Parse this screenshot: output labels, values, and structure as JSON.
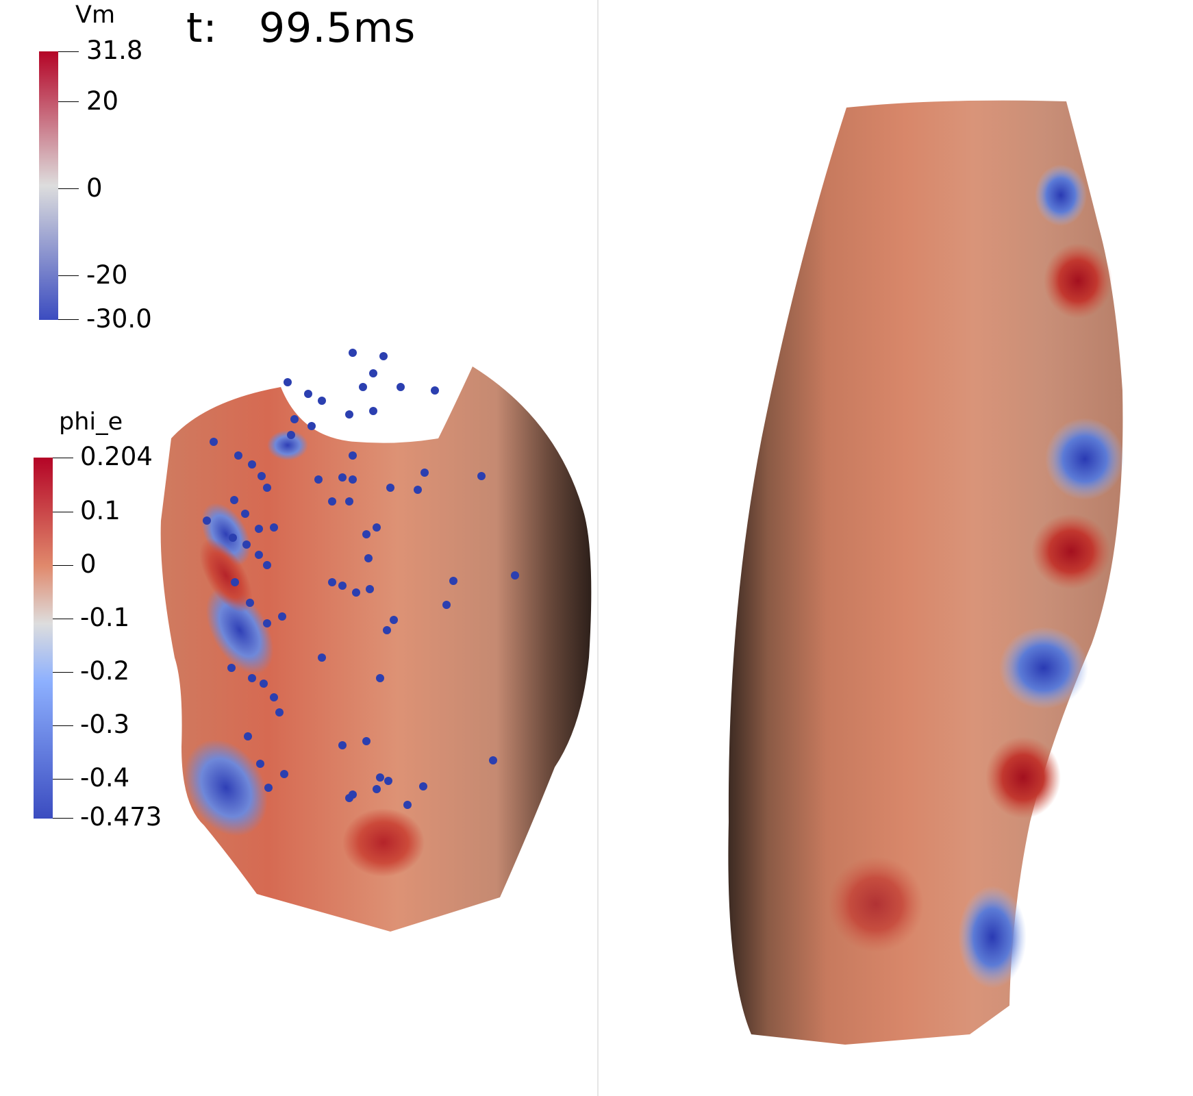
{
  "time": {
    "label": "t:",
    "value": "99.5ms"
  },
  "legends": {
    "vm": {
      "title": "Vm",
      "max_label": "31.8",
      "min_label": "-30.0",
      "min": -30.0,
      "max": 31.8,
      "ticks": [
        "20",
        "0",
        "-20"
      ],
      "tick_values": [
        20,
        0,
        -20
      ]
    },
    "phi_e": {
      "title": "phi_e",
      "max_label": "0.204",
      "min_label": "-0.473",
      "min": -0.473,
      "max": 0.204,
      "ticks": [
        "0.1",
        "0",
        "-0.1",
        "-0.2",
        "-0.3",
        "-0.4"
      ],
      "tick_values": [
        0.1,
        0,
        -0.1,
        -0.2,
        -0.3,
        -0.4
      ]
    }
  },
  "colormap": {
    "name": "Cool to Warm",
    "low": "#3b4cc0",
    "mid": "#dddddd",
    "high": "#b40426"
  },
  "colors": {
    "shadow": "#3a2a22",
    "surface": "#d98a6a",
    "electrode": "#2b3fb0"
  }
}
